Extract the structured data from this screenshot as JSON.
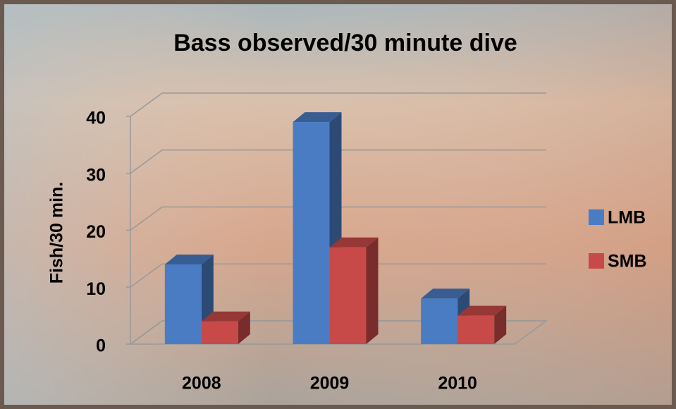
{
  "chart_data": {
    "type": "bar3d",
    "title": "Bass observed/30 minute dive",
    "y_label": "Fish/30 min.",
    "categories": [
      "2008",
      "2009",
      "2010"
    ],
    "series": [
      {
        "name": "LMB",
        "color": "#4a7cc4",
        "values": [
          14,
          39,
          8
        ]
      },
      {
        "name": "SMB",
        "color": "#c84a48",
        "values": [
          4,
          17,
          5
        ]
      }
    ],
    "ylim": [
      0,
      40
    ],
    "yticks": [
      0,
      10,
      20,
      30,
      40
    ],
    "grid": true,
    "legend": "right"
  }
}
